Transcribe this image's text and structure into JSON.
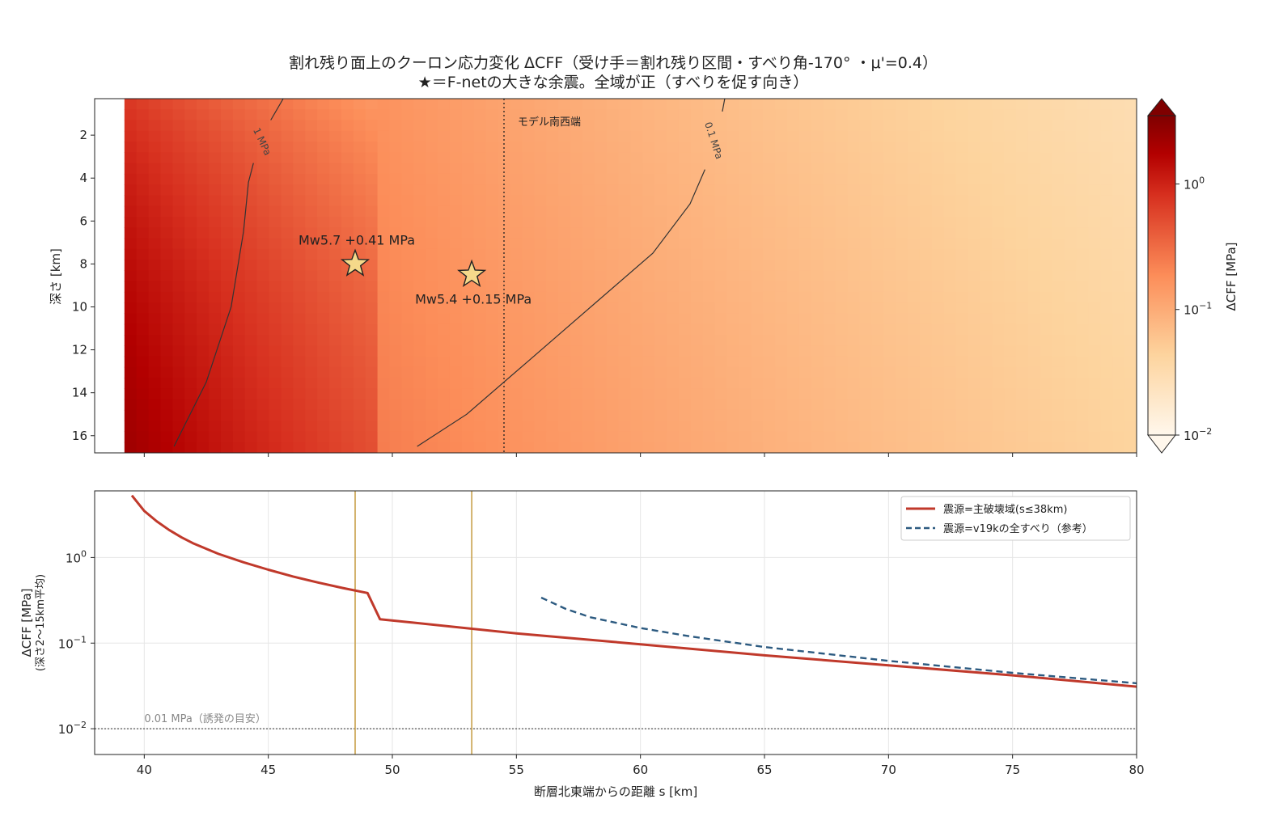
{
  "figure": {
    "title_line1": "割れ残り面上のクーロン応力変化 ΔCFF（受け手＝割れ残り区間・すべり角-170° ・μ'=0.4）",
    "title_line2": "★＝F-netの大きな余震。全域が正（すべりを促す向き）"
  },
  "chart_data": [
    {
      "type": "heatmap",
      "ylabel": "深さ [km]",
      "x_range": [
        38,
        80
      ],
      "y_range": [
        16.8,
        0.3
      ],
      "data_x_range": [
        39.2,
        80
      ],
      "yticks": [
        "2",
        "4",
        "6",
        "8",
        "10",
        "12",
        "14",
        "16"
      ],
      "colormap": "OrRd",
      "log_scale": true,
      "colorbar": {
        "label": "ΔCFF [MPa]",
        "range": [
          0.01,
          3.5
        ],
        "ticks": [
          {
            "value": 1,
            "base": "10",
            "exp": "0"
          },
          {
            "value": 0.1,
            "base": "10",
            "exp": "−1"
          },
          {
            "value": 0.01,
            "base": "10",
            "exp": "−2"
          }
        ]
      },
      "vline": {
        "x": 54.5,
        "label": "モデル南西端"
      },
      "contours": [
        {
          "label": "1 MPa",
          "points": [
            [
              41.2,
              16.5
            ],
            [
              42.5,
              13.5
            ],
            [
              43.5,
              10
            ],
            [
              44,
              6.5
            ],
            [
              44.2,
              4.2
            ],
            [
              44.4,
              3.3
            ]
          ],
          "upper": [
            [
              45.1,
              1.3
            ],
            [
              45.6,
              0.3
            ]
          ]
        },
        {
          "label": "0.1 MPa",
          "points": [
            [
              51,
              16.5
            ],
            [
              53,
              15
            ],
            [
              55.5,
              12.5
            ],
            [
              58,
              10
            ],
            [
              60.5,
              7.5
            ],
            [
              62,
              5.2
            ],
            [
              62.6,
              3.6
            ]
          ],
          "upper": [
            [
              63.3,
              0.9
            ],
            [
              63.4,
              0.3
            ]
          ]
        }
      ],
      "events": [
        {
          "label": "Mw5.7  +0.41 MPa",
          "x": 48.5,
          "y": 8.0
        },
        {
          "label": "Mw5.4  +0.15 MPa",
          "x": 53.2,
          "y": 8.5
        }
      ]
    },
    {
      "type": "line",
      "xlabel": "断層北東端からの距離 s [km]",
      "ylabel_line1": "ΔCFF [MPa]",
      "ylabel_line2": "(深さ2〜15km平均)",
      "xlim": [
        38,
        80
      ],
      "ylim": [
        0.005,
        6
      ],
      "log_y": true,
      "xticks": [
        "40",
        "45",
        "50",
        "55",
        "60",
        "65",
        "70",
        "75",
        "80"
      ],
      "yticks": [
        {
          "value": 1,
          "base": "10",
          "exp": "0"
        },
        {
          "value": 0.1,
          "base": "10",
          "exp": "−1"
        },
        {
          "value": 0.01,
          "base": "10",
          "exp": "−2"
        }
      ],
      "grid": true,
      "legend": "top-right",
      "series": [
        {
          "name": "震源=主破壊域(s≤38km)",
          "color": "#c0392b",
          "style": "solid",
          "x": [
            39.5,
            40,
            40.5,
            41,
            41.5,
            42,
            43,
            44,
            45,
            46,
            47,
            48,
            49,
            49.5,
            55,
            60,
            65,
            70,
            75,
            80
          ],
          "y": [
            5.3,
            3.5,
            2.65,
            2.1,
            1.72,
            1.45,
            1.1,
            0.88,
            0.72,
            0.6,
            0.51,
            0.44,
            0.385,
            0.19,
            0.13,
            0.097,
            0.072,
            0.055,
            0.042,
            0.031
          ]
        },
        {
          "name": "震源=v19kの全すべり（参考）",
          "color": "#2c5a80",
          "style": "dashed",
          "x": [
            56,
            57,
            58,
            60,
            62,
            65,
            70,
            75,
            80
          ],
          "y": [
            0.34,
            0.25,
            0.2,
            0.15,
            0.12,
            0.09,
            0.062,
            0.045,
            0.034
          ]
        }
      ],
      "markers": [
        {
          "x": 48.5
        },
        {
          "x": 53.2
        }
      ],
      "hline": {
        "y": 0.01,
        "label": "0.01 MPa（誘発の目安）"
      }
    }
  ],
  "colors": {
    "accent_red": "#c0392b",
    "accent_blue": "#2c5a80",
    "marker_gold": "#c8a04a",
    "star_fill": "#f5d98a"
  }
}
